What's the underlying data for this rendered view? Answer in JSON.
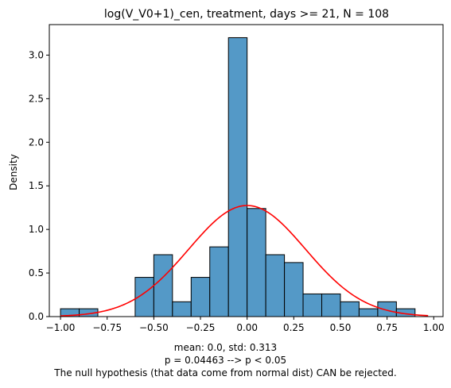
{
  "chart_data": {
    "type": "bar",
    "title": "log(V_V0+1)_cen, treatment, days >= 21, N = 108",
    "xlabel": "",
    "ylabel": "Density",
    "xlim": [
      -1.06,
      1.05
    ],
    "ylim": [
      0,
      3.35
    ],
    "xticks": [
      -1.0,
      -0.75,
      -0.5,
      -0.25,
      0.0,
      0.25,
      0.5,
      0.75,
      1.0
    ],
    "xtick_labels": [
      "−1.00",
      "−0.75",
      "−0.50",
      "−0.25",
      "0.00",
      "0.25",
      "0.50",
      "0.75",
      "1.00"
    ],
    "yticks": [
      0.0,
      0.5,
      1.0,
      1.5,
      2.0,
      2.5,
      3.0
    ],
    "ytick_labels": [
      "0.0",
      "0.5",
      "1.0",
      "1.5",
      "2.0",
      "2.5",
      "3.0"
    ],
    "bar_color": "#5499c7",
    "edge_color": "#000000",
    "curve_color": "#ff0000",
    "grid": false,
    "bins": [
      {
        "x0": -1.0,
        "x1": -0.9,
        "density": 0.09
      },
      {
        "x0": -0.9,
        "x1": -0.8,
        "density": 0.09
      },
      {
        "x0": -0.8,
        "x1": -0.7,
        "density": 0.0
      },
      {
        "x0": -0.7,
        "x1": -0.6,
        "density": 0.0
      },
      {
        "x0": -0.6,
        "x1": -0.5,
        "density": 0.45
      },
      {
        "x0": -0.5,
        "x1": -0.4,
        "density": 0.71
      },
      {
        "x0": -0.4,
        "x1": -0.3,
        "density": 0.17
      },
      {
        "x0": -0.3,
        "x1": -0.2,
        "density": 0.45
      },
      {
        "x0": -0.2,
        "x1": -0.1,
        "density": 0.8
      },
      {
        "x0": -0.1,
        "x1": 0.0,
        "density": 3.2
      },
      {
        "x0": 0.0,
        "x1": 0.1,
        "density": 1.24
      },
      {
        "x0": 0.1,
        "x1": 0.2,
        "density": 0.71
      },
      {
        "x0": 0.2,
        "x1": 0.3,
        "density": 0.62
      },
      {
        "x0": 0.3,
        "x1": 0.4,
        "density": 0.26
      },
      {
        "x0": 0.4,
        "x1": 0.5,
        "density": 0.26
      },
      {
        "x0": 0.5,
        "x1": 0.6,
        "density": 0.17
      },
      {
        "x0": 0.6,
        "x1": 0.7,
        "density": 0.09
      },
      {
        "x0": 0.7,
        "x1": 0.8,
        "density": 0.17
      },
      {
        "x0": 0.8,
        "x1": 0.9,
        "density": 0.09
      }
    ],
    "normal_fit": {
      "mean": 0.0,
      "std": 0.313,
      "x_range": [
        -1.0,
        0.97
      ]
    }
  },
  "caption": {
    "line1": "mean: 0.0, std: 0.313",
    "line2": "p = 0.04463 --> p < 0.05",
    "line3": "The null hypothesis (that data come from normal dist) CAN be rejected."
  }
}
